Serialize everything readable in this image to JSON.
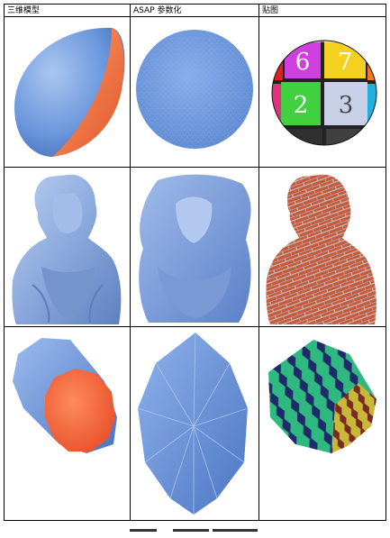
{
  "table": {
    "columns": [
      "三维模型",
      "ASAP 参数化",
      "贴图"
    ],
    "rows": [
      {
        "name": "hemisphere",
        "model": "blue-hemisphere-with-orange-cut-face",
        "param": "blue-circular-disk-mesh",
        "texture": "numbered-color-checker-sphere",
        "texture_numbers": [
          "6",
          "7",
          "2",
          "3"
        ]
      },
      {
        "name": "beethoven-bust",
        "model": "blue-beethoven-bust",
        "param": "blue-flattened-bust",
        "texture": "brick-textured-bust"
      },
      {
        "name": "cylinder",
        "model": "blue-cylinder-with-orange-cap",
        "param": "blue-lens-shaped-fan-mesh",
        "texture": "hexagon-patterned-cylinder"
      }
    ]
  },
  "colors": {
    "mesh_blue": "#6a96dc",
    "cut_orange": "#f07848",
    "brick": "#c8583a",
    "grout": "#b8b8b8"
  }
}
